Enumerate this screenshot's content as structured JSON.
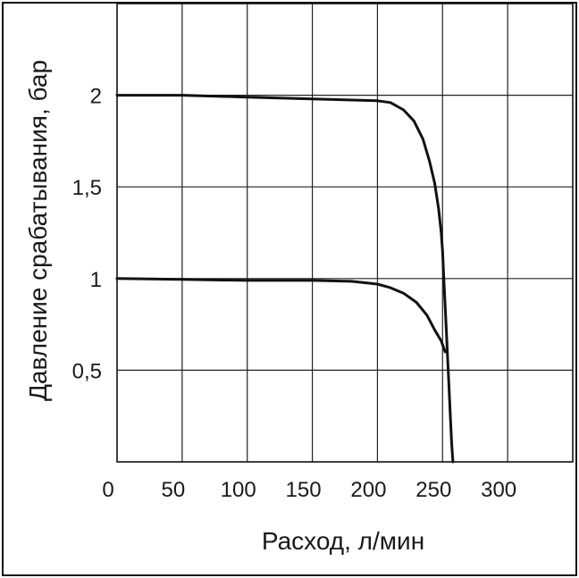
{
  "chart_data": {
    "type": "line",
    "xlabel": "Расход, л/мин",
    "ylabel": "Давление срабатывания, бар",
    "xlim": [
      0,
      350
    ],
    "ylim": [
      0,
      2.5
    ],
    "grid": true,
    "x_ticks": [
      {
        "value": 0,
        "label": "0"
      },
      {
        "value": 50,
        "label": "50"
      },
      {
        "value": 100,
        "label": "100"
      },
      {
        "value": 150,
        "label": "150"
      },
      {
        "value": 200,
        "label": "200"
      },
      {
        "value": 250,
        "label": "250"
      },
      {
        "value": 300,
        "label": "300"
      }
    ],
    "y_ticks": [
      {
        "value": 0.5,
        "label": "0,5"
      },
      {
        "value": 1,
        "label": "1"
      },
      {
        "value": 1.5,
        "label": "1,5"
      },
      {
        "value": 2,
        "label": "2"
      }
    ],
    "series": [
      {
        "x": [
          0,
          50,
          100,
          150,
          200,
          210,
          220,
          228,
          235,
          240,
          244,
          247,
          249,
          250,
          251,
          252,
          253,
          254,
          255,
          256,
          257,
          258
        ],
        "values": [
          2.0,
          2.0,
          1.99,
          1.98,
          1.97,
          1.96,
          1.92,
          1.86,
          1.76,
          1.64,
          1.52,
          1.38,
          1.25,
          1.15,
          1.0,
          0.85,
          0.7,
          0.55,
          0.4,
          0.25,
          0.1,
          0.0
        ]
      },
      {
        "x": [
          0,
          50,
          100,
          150,
          180,
          200,
          210,
          220,
          230,
          238,
          244,
          249,
          252
        ],
        "values": [
          1.0,
          0.995,
          0.99,
          0.99,
          0.985,
          0.97,
          0.95,
          0.92,
          0.87,
          0.8,
          0.72,
          0.66,
          0.6
        ]
      }
    ]
  }
}
